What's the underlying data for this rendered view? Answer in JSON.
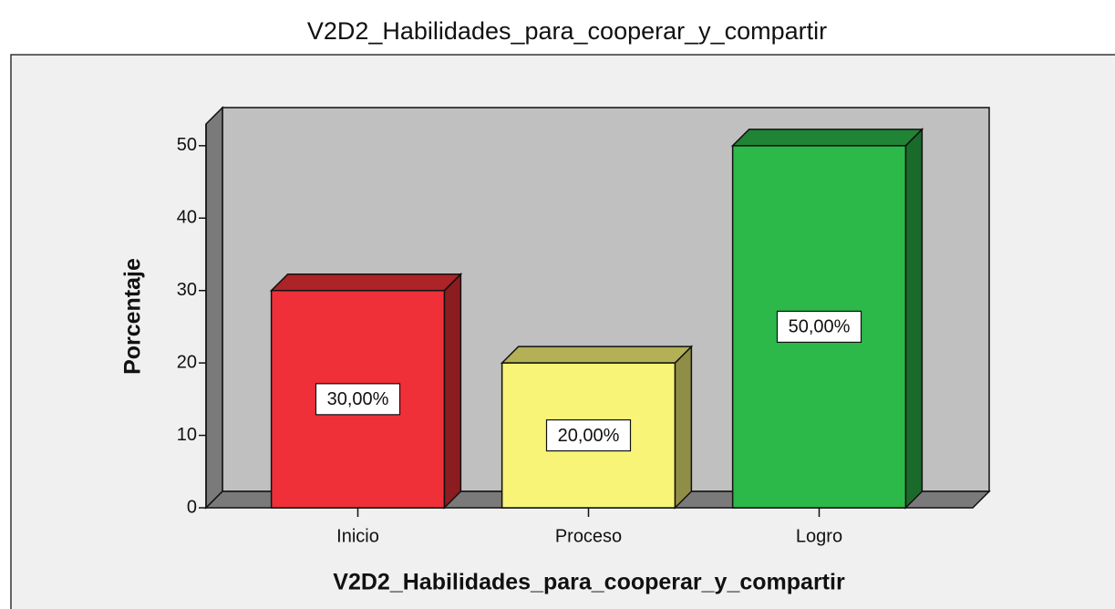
{
  "chart_data": {
    "type": "bar3d",
    "title": "V2D2_Habilidades_para_cooperar_y_compartir",
    "x_label": "V2D2_Habilidades_para_cooperar_y_compartir",
    "y_label": "Porcentaje",
    "categories": [
      "Inicio",
      "Proceso",
      "Logro"
    ],
    "values": [
      30,
      20,
      50
    ],
    "value_labels": [
      "30,00%",
      "20,00%",
      "50,00%"
    ],
    "colors": [
      "#ef3038",
      "#f8f478",
      "#2db84a"
    ],
    "ylim": [
      0,
      53
    ],
    "yticks": [
      0,
      10,
      20,
      30,
      40,
      50
    ]
  }
}
